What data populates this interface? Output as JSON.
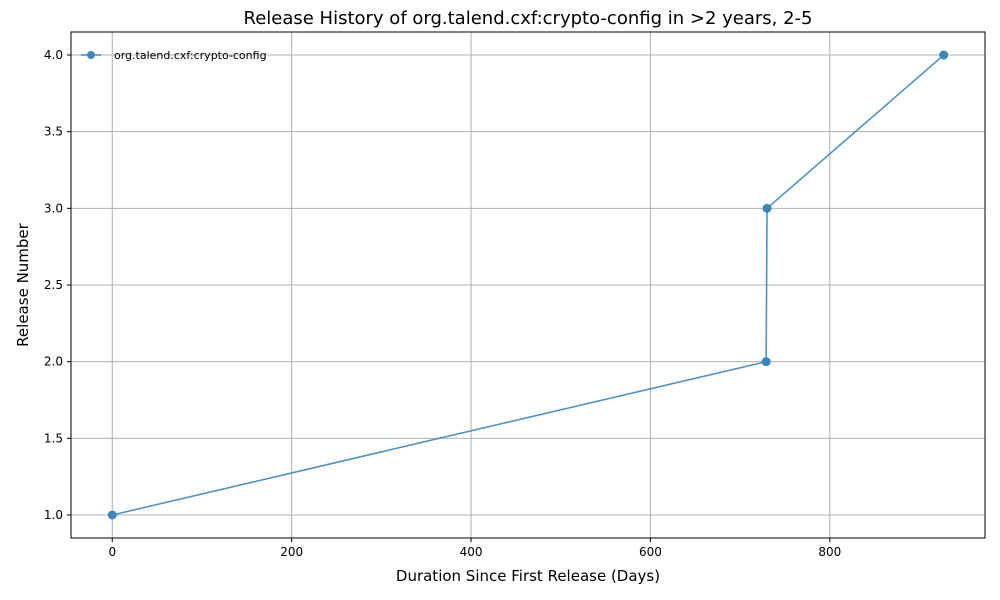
{
  "chart_data": {
    "type": "line",
    "title": "Release History of org.talend.cxf:crypto-config in >2 years, 2-5",
    "xlabel": "Duration Since First Release (Days)",
    "ylabel": "Release Number",
    "xlim": [
      -46,
      973
    ],
    "ylim": [
      0.85,
      4.15
    ],
    "xticks": [
      0,
      200,
      400,
      600,
      800
    ],
    "xtick_labels": [
      "0",
      "200",
      "400",
      "600",
      "800"
    ],
    "yticks": [
      1.0,
      1.5,
      2.0,
      2.5,
      3.0,
      3.5,
      4.0
    ],
    "ytick_labels": [
      "1.0",
      "1.5",
      "2.0",
      "2.5",
      "3.0",
      "3.5",
      "4.0"
    ],
    "grid": true,
    "legend_position": "top-left",
    "series": [
      {
        "name": "org.talend.cxf:crypto-config",
        "color": "#3a87bd",
        "marker": "circle",
        "x": [
          0,
          729,
          730,
          927
        ],
        "y": [
          1,
          2,
          3,
          4
        ]
      }
    ]
  }
}
